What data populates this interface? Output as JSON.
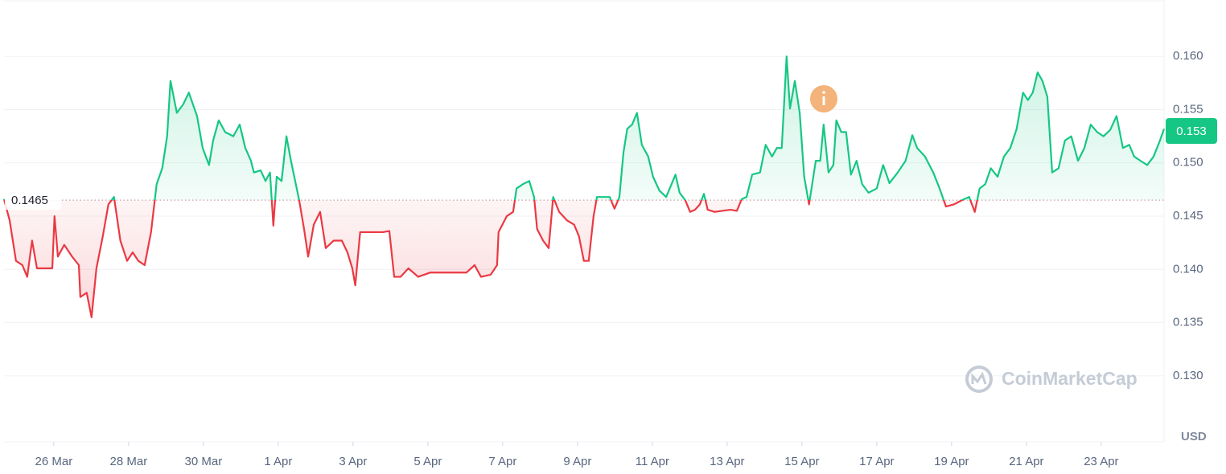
{
  "chart_data": {
    "type": "line",
    "currency": "USD",
    "watermark": "CoinMarketCap",
    "baseline": 0.1465,
    "current_price": 0.153,
    "color_up": "#16c784",
    "color_down": "#ea3943",
    "grid": true,
    "xlim": [
      24.67,
      55.68
    ],
    "ylim": [
      0.1238,
      0.1653
    ],
    "xticks": [
      {
        "value": 26,
        "label": "26 Mar"
      },
      {
        "value": 28,
        "label": "28 Mar"
      },
      {
        "value": 30,
        "label": "30 Mar"
      },
      {
        "value": 32,
        "label": "1 Apr"
      },
      {
        "value": 34,
        "label": "3 Apr"
      },
      {
        "value": 36,
        "label": "5 Apr"
      },
      {
        "value": 38,
        "label": "7 Apr"
      },
      {
        "value": 40,
        "label": "9 Apr"
      },
      {
        "value": 42,
        "label": "11 Apr"
      },
      {
        "value": 44,
        "label": "13 Apr"
      },
      {
        "value": 46,
        "label": "15 Apr"
      },
      {
        "value": 48,
        "label": "17 Apr"
      },
      {
        "value": 50,
        "label": "19 Apr"
      },
      {
        "value": 52,
        "label": "21 Apr"
      },
      {
        "value": 54,
        "label": "23 Apr"
      }
    ],
    "yticks": [
      {
        "value": 0.13,
        "label": "0.130"
      },
      {
        "value": 0.135,
        "label": "0.135"
      },
      {
        "value": 0.14,
        "label": "0.140"
      },
      {
        "value": 0.145,
        "label": "0.145"
      },
      {
        "value": 0.15,
        "label": "0.150"
      },
      {
        "value": 0.155,
        "label": "0.155"
      },
      {
        "value": 0.16,
        "label": "0.160"
      }
    ],
    "x": [
      24.67,
      24.82,
      24.99,
      25.16,
      25.29,
      25.42,
      25.55,
      25.74,
      25.96,
      26.02,
      26.11,
      26.28,
      26.49,
      26.67,
      26.71,
      26.88,
      27.01,
      27.14,
      27.31,
      27.46,
      27.61,
      27.78,
      27.96,
      28.11,
      28.26,
      28.43,
      28.6,
      28.75,
      28.9,
      29.03,
      29.12,
      29.29,
      29.46,
      29.61,
      29.83,
      29.98,
      30.15,
      30.26,
      30.41,
      30.58,
      30.8,
      30.97,
      31.12,
      31.27,
      31.35,
      31.53,
      31.66,
      31.78,
      31.87,
      31.96,
      32.09,
      32.22,
      32.34,
      32.56,
      32.69,
      32.8,
      32.95,
      33.12,
      33.27,
      33.48,
      33.7,
      33.85,
      33.98,
      34.06,
      34.19,
      34.37,
      34.58,
      34.8,
      34.97,
      35.1,
      35.27,
      35.48,
      35.74,
      36.06,
      36.34,
      36.6,
      36.86,
      37.03,
      37.25,
      37.42,
      37.68,
      37.85,
      37.89,
      38.11,
      38.28,
      38.37,
      38.54,
      38.71,
      38.84,
      38.92,
      39.08,
      39.23,
      39.35,
      39.51,
      39.72,
      39.91,
      40.04,
      40.17,
      40.3,
      40.43,
      40.52,
      40.69,
      40.86,
      40.99,
      41.12,
      41.23,
      41.33,
      41.46,
      41.59,
      41.72,
      41.89,
      42.02,
      42.19,
      42.37,
      42.49,
      42.62,
      42.73,
      42.88,
      43.01,
      43.14,
      43.27,
      43.38,
      43.48,
      43.66,
      43.87,
      44.09,
      44.26,
      44.39,
      44.52,
      44.67,
      44.88,
      45.03,
      45.2,
      45.33,
      45.46,
      45.59,
      45.68,
      45.81,
      45.94,
      46.06,
      46.19,
      46.37,
      46.49,
      46.58,
      46.71,
      46.84,
      46.92,
      47.05,
      47.18,
      47.31,
      47.46,
      47.61,
      47.78,
      48.0,
      48.17,
      48.34,
      48.56,
      48.77,
      48.95,
      49.08,
      49.29,
      49.51,
      49.68,
      49.85,
      50.06,
      50.28,
      50.47,
      50.62,
      50.75,
      50.9,
      51.05,
      51.23,
      51.4,
      51.57,
      51.74,
      51.91,
      52.04,
      52.17,
      52.3,
      52.43,
      52.56,
      52.69,
      52.86,
      53.03,
      53.2,
      53.38,
      53.55,
      53.72,
      53.89,
      54.06,
      54.24,
      54.41,
      54.58,
      54.75,
      54.88,
      55.05,
      55.23,
      55.4,
      55.57,
      55.68
    ],
    "values": [
      0.1466,
      0.1446,
      0.1408,
      0.1404,
      0.1393,
      0.1427,
      0.1401,
      0.1401,
      0.1401,
      0.145,
      0.1412,
      0.1423,
      0.1412,
      0.1404,
      0.1374,
      0.1378,
      0.1355,
      0.1401,
      0.1431,
      0.1461,
      0.1468,
      0.1427,
      0.1408,
      0.1416,
      0.1408,
      0.1404,
      0.1435,
      0.148,
      0.1495,
      0.1525,
      0.1577,
      0.1547,
      0.1555,
      0.1566,
      0.1544,
      0.1514,
      0.1498,
      0.1521,
      0.154,
      0.1529,
      0.1525,
      0.1536,
      0.1514,
      0.1502,
      0.1491,
      0.1493,
      0.1483,
      0.1491,
      0.1441,
      0.1487,
      0.1483,
      0.1525,
      0.1502,
      0.1465,
      0.1438,
      0.1412,
      0.1442,
      0.1454,
      0.142,
      0.1427,
      0.1427,
      0.1416,
      0.1401,
      0.1385,
      0.1435,
      0.1435,
      0.1435,
      0.1435,
      0.1436,
      0.1393,
      0.1393,
      0.1401,
      0.1393,
      0.1397,
      0.1397,
      0.1397,
      0.1397,
      0.1397,
      0.1404,
      0.1393,
      0.1395,
      0.1404,
      0.1435,
      0.145,
      0.1454,
      0.1476,
      0.148,
      0.1483,
      0.1468,
      0.1438,
      0.1427,
      0.142,
      0.1468,
      0.1454,
      0.1446,
      0.1442,
      0.1431,
      0.1408,
      0.1408,
      0.145,
      0.1468,
      0.1468,
      0.1468,
      0.1457,
      0.1468,
      0.151,
      0.1532,
      0.1536,
      0.1547,
      0.1517,
      0.1506,
      0.1487,
      0.1474,
      0.1468,
      0.1478,
      0.1489,
      0.1472,
      0.1465,
      0.1454,
      0.1456,
      0.1461,
      0.1471,
      0.1456,
      0.1454,
      0.1455,
      0.1456,
      0.1455,
      0.1466,
      0.1468,
      0.1489,
      0.1491,
      0.1517,
      0.1506,
      0.1514,
      0.1514,
      0.16,
      0.1551,
      0.1577,
      0.1547,
      0.1487,
      0.1461,
      0.1502,
      0.1502,
      0.1536,
      0.1491,
      0.1498,
      0.154,
      0.1529,
      0.1529,
      0.1489,
      0.1502,
      0.148,
      0.1472,
      0.1476,
      0.1498,
      0.1481,
      0.1491,
      0.1502,
      0.1526,
      0.1514,
      0.1506,
      0.1491,
      0.1476,
      0.1459,
      0.1461,
      0.1465,
      0.1468,
      0.1454,
      0.1476,
      0.148,
      0.1495,
      0.1487,
      0.1506,
      0.1514,
      0.1532,
      0.1566,
      0.1559,
      0.1566,
      0.1585,
      0.1577,
      0.1562,
      0.1491,
      0.1495,
      0.1521,
      0.1525,
      0.1502,
      0.1514,
      0.1536,
      0.1529,
      0.1525,
      0.1531,
      0.1544,
      0.1514,
      0.1517,
      0.1506,
      0.1502,
      0.1498,
      0.1506,
      0.1521,
      0.1532
    ]
  }
}
